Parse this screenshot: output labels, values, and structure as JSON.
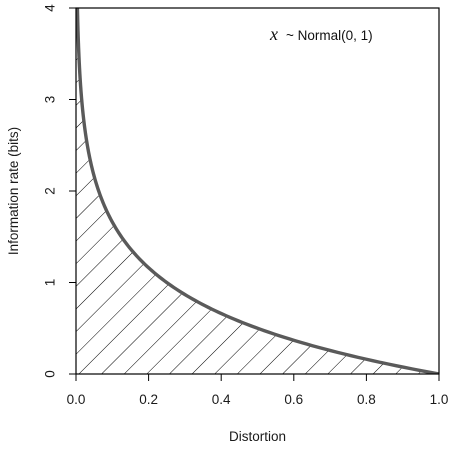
{
  "chart_data": {
    "type": "area",
    "title": "",
    "annotation": {
      "variable": "x",
      "text": "~ Normal(0, 1)"
    },
    "xlabel": "Distortion",
    "ylabel": "Information rate (bits)",
    "xlim": [
      0,
      1
    ],
    "ylim": [
      0,
      4
    ],
    "xticks": [
      0.0,
      0.2,
      0.4,
      0.6,
      0.8,
      1.0
    ],
    "xtick_labels": [
      "0.0",
      "0.2",
      "0.4",
      "0.6",
      "0.8",
      "1.0"
    ],
    "yticks": [
      0,
      1,
      2,
      3,
      4
    ],
    "ytick_labels": [
      "0",
      "1",
      "2",
      "3",
      "4"
    ],
    "grid": false,
    "fill": "diagonal-hatch",
    "series": [
      {
        "x": [
          0.0039,
          0.01,
          0.02,
          0.03,
          0.05,
          0.075,
          0.1,
          0.15,
          0.2,
          0.25,
          0.3,
          0.4,
          0.5,
          0.6,
          0.7,
          0.8,
          0.9,
          1.0
        ],
        "y": [
          4.0,
          3.32,
          2.82,
          2.53,
          2.16,
          1.87,
          1.66,
          1.37,
          1.16,
          1.0,
          0.87,
          0.66,
          0.5,
          0.37,
          0.26,
          0.16,
          0.08,
          0.0
        ],
        "color": "#5a5a5a"
      }
    ]
  }
}
